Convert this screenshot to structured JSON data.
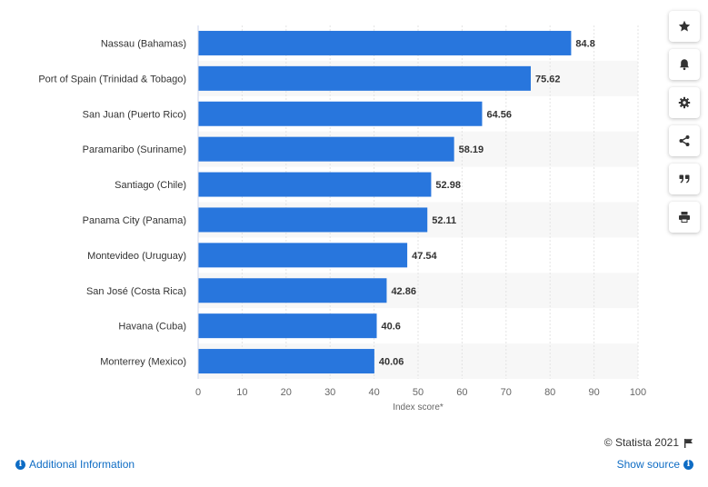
{
  "chart_data": {
    "type": "bar",
    "orientation": "horizontal",
    "categories": [
      "Nassau (Bahamas)",
      "Port of Spain (Trinidad & Tobago)",
      "San Juan (Puerto Rico)",
      "Paramaribo (Suriname)",
      "Santiago (Chile)",
      "Panama City (Panama)",
      "Montevideo (Uruguay)",
      "San José (Costa Rica)",
      "Havana (Cuba)",
      "Monterrey (Mexico)"
    ],
    "values": [
      84.8,
      75.62,
      64.56,
      58.19,
      52.98,
      52.11,
      47.54,
      42.86,
      40.6,
      40.06
    ],
    "value_labels": [
      "84.8",
      "75.62",
      "64.56",
      "58.19",
      "52.98",
      "52.11",
      "47.54",
      "42.86",
      "40.6",
      "40.06"
    ],
    "xlabel": "Index score*",
    "xlim": [
      0,
      100
    ],
    "xticks": [
      "0",
      "10",
      "20",
      "30",
      "40",
      "50",
      "60",
      "70",
      "80",
      "90",
      "100"
    ],
    "grid": true,
    "bar_color": "#2876dd"
  },
  "sidebar": {
    "buttons": [
      {
        "icon": "star-icon"
      },
      {
        "icon": "bell-icon"
      },
      {
        "icon": "gear-icon"
      },
      {
        "icon": "share-icon"
      },
      {
        "icon": "quote-icon"
      },
      {
        "icon": "print-icon"
      }
    ]
  },
  "footer": {
    "credits": "© Statista 2021",
    "additional_info": "Additional Information",
    "show_source": "Show source"
  }
}
